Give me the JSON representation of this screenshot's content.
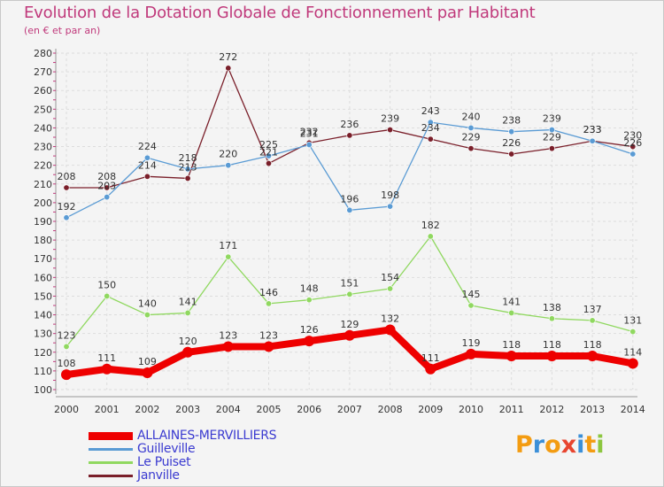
{
  "title": "Evolution de la Dotation Globale de Fonctionnement par Habitant",
  "subtitle": "(en € et par an)",
  "logo_text": "Proxiti",
  "chart_data": {
    "type": "line",
    "title": "Evolution de la Dotation Globale de Fonctionnement par Habitant",
    "subtitle": "(en € et par an)",
    "x": [
      "2000",
      "2001",
      "2002",
      "2003",
      "2004",
      "2005",
      "2006",
      "2007",
      "2008",
      "2009",
      "2010",
      "2011",
      "2012",
      "2013",
      "2014"
    ],
    "ylim": [
      100,
      280
    ],
    "yticks": [
      100,
      110,
      120,
      130,
      140,
      150,
      160,
      170,
      180,
      190,
      200,
      210,
      220,
      230,
      240,
      250,
      260,
      270,
      280
    ],
    "grid": true,
    "legend_position": "bottom-left",
    "series": [
      {
        "name": "ALLAINES-MERVILLIERS",
        "color": "#ee0000",
        "values": [
          108,
          111,
          109,
          120,
          123,
          123,
          126,
          129,
          132,
          111,
          119,
          118,
          118,
          118,
          114
        ]
      },
      {
        "name": "Guilleville",
        "color": "#5a9bd4",
        "values": [
          192,
          203,
          224,
          218,
          220,
          225,
          231,
          196,
          198,
          243,
          240,
          238,
          239,
          233,
          226
        ]
      },
      {
        "name": "Le Puiset",
        "color": "#90d860",
        "values": [
          123,
          150,
          140,
          141,
          171,
          146,
          148,
          151,
          154,
          182,
          145,
          141,
          138,
          137,
          131
        ]
      },
      {
        "name": "Janville",
        "color": "#7a1f2a",
        "values": [
          208,
          208,
          214,
          213,
          272,
          221,
          232,
          236,
          239,
          234,
          229,
          226,
          229,
          233,
          230
        ]
      }
    ]
  }
}
